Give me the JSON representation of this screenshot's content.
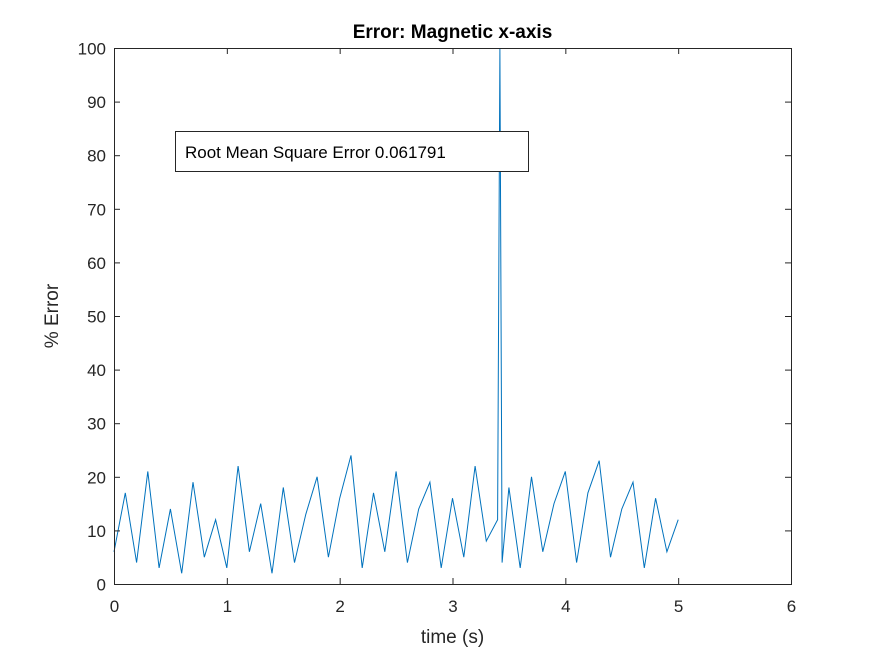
{
  "chart_data": {
    "type": "line",
    "title": "Error: Magnetic x-axis",
    "xlabel": "time (s)",
    "ylabel": "% Error",
    "xlim": [
      0,
      6
    ],
    "ylim": [
      0,
      100
    ],
    "xticks": [
      "0",
      "1",
      "2",
      "3",
      "4",
      "5",
      "6"
    ],
    "yticks": [
      "0",
      "10",
      "20",
      "30",
      "40",
      "50",
      "60",
      "70",
      "80",
      "90",
      "100"
    ],
    "grid": false,
    "legend": "none",
    "series_color": "#0072BD",
    "annotation": "Root Mean Square Error 0.061791",
    "series": [
      {
        "x": [
          0.0,
          0.1,
          0.2,
          0.3,
          0.4,
          0.5,
          0.6,
          0.7,
          0.8,
          0.9,
          1.0,
          1.1,
          1.2,
          1.3,
          1.4,
          1.5,
          1.6,
          1.7,
          1.8,
          1.9,
          2.0,
          2.1,
          2.2,
          2.3,
          2.4,
          2.5,
          2.6,
          2.7,
          2.8,
          2.9,
          3.0,
          3.1,
          3.2,
          3.3,
          3.4,
          3.42,
          3.44,
          3.5,
          3.6,
          3.7,
          3.8,
          3.9,
          4.0,
          4.1,
          4.2,
          4.3,
          4.4,
          4.5,
          4.6,
          4.7,
          4.8,
          4.9,
          5.0
        ],
        "y": [
          6,
          17,
          4,
          21,
          3,
          14,
          2,
          19,
          5,
          12,
          3,
          22,
          6,
          15,
          2,
          18,
          4,
          13,
          20,
          5,
          16,
          24,
          3,
          17,
          6,
          21,
          4,
          14,
          19,
          3,
          16,
          5,
          22,
          8,
          12,
          100,
          4,
          18,
          3,
          20,
          6,
          15,
          21,
          4,
          17,
          23,
          5,
          14,
          19,
          3,
          16,
          6,
          12
        ]
      }
    ]
  }
}
